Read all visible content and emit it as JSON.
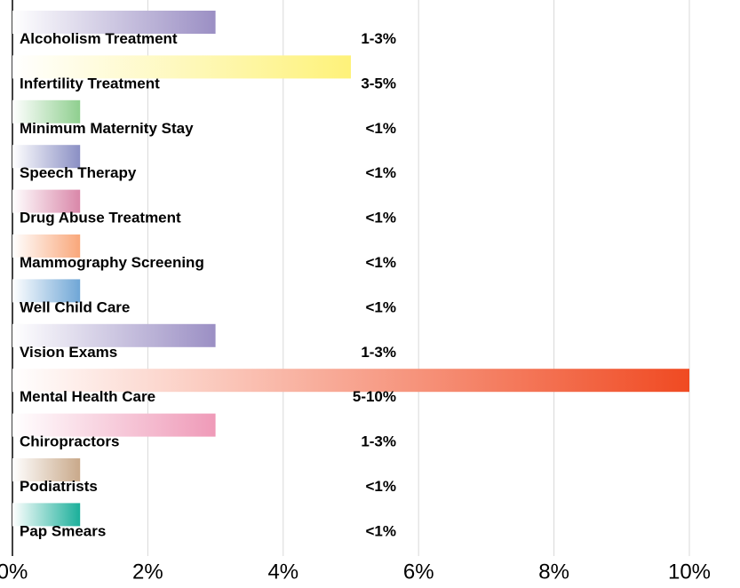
{
  "chart_data": {
    "type": "bar",
    "orientation": "horizontal",
    "categories": [
      "Alcoholism Treatment",
      "Infertility Treatment",
      "Minimum Maternity Stay",
      "Speech Therapy",
      "Drug Abuse Treatment",
      "Mammography Screening",
      "Well Child Care",
      "Vision Exams",
      "Mental Health Care",
      "Chiropractors",
      "Podiatrists",
      "Pap Smears"
    ],
    "values": [
      3,
      5,
      1,
      1,
      1,
      1,
      1,
      3,
      10,
      3,
      1,
      1
    ],
    "value_labels": [
      "1-3%",
      "3-5%",
      "<1%",
      "<1%",
      "<1%",
      "<1%",
      "<1%",
      "1-3%",
      "5-10%",
      "1-3%",
      "<1%",
      "<1%"
    ],
    "colors": [
      "#9b8fc4",
      "#fef27a",
      "#8fcf8f",
      "#8a8fc4",
      "#d987a9",
      "#f9a77a",
      "#6fa6d6",
      "#9b8fc4",
      "#f04a22",
      "#ef9ab8",
      "#c9a98a",
      "#1aaf9a"
    ],
    "xlim": [
      0,
      10
    ],
    "xticks": [
      {
        "value": 0,
        "label": "0%"
      },
      {
        "value": 2,
        "label": "2%"
      },
      {
        "value": 4,
        "label": "4%"
      },
      {
        "value": 6,
        "label": "6%"
      },
      {
        "value": 8,
        "label": "8%"
      },
      {
        "value": 10,
        "label": "10%"
      }
    ],
    "grid": true
  }
}
